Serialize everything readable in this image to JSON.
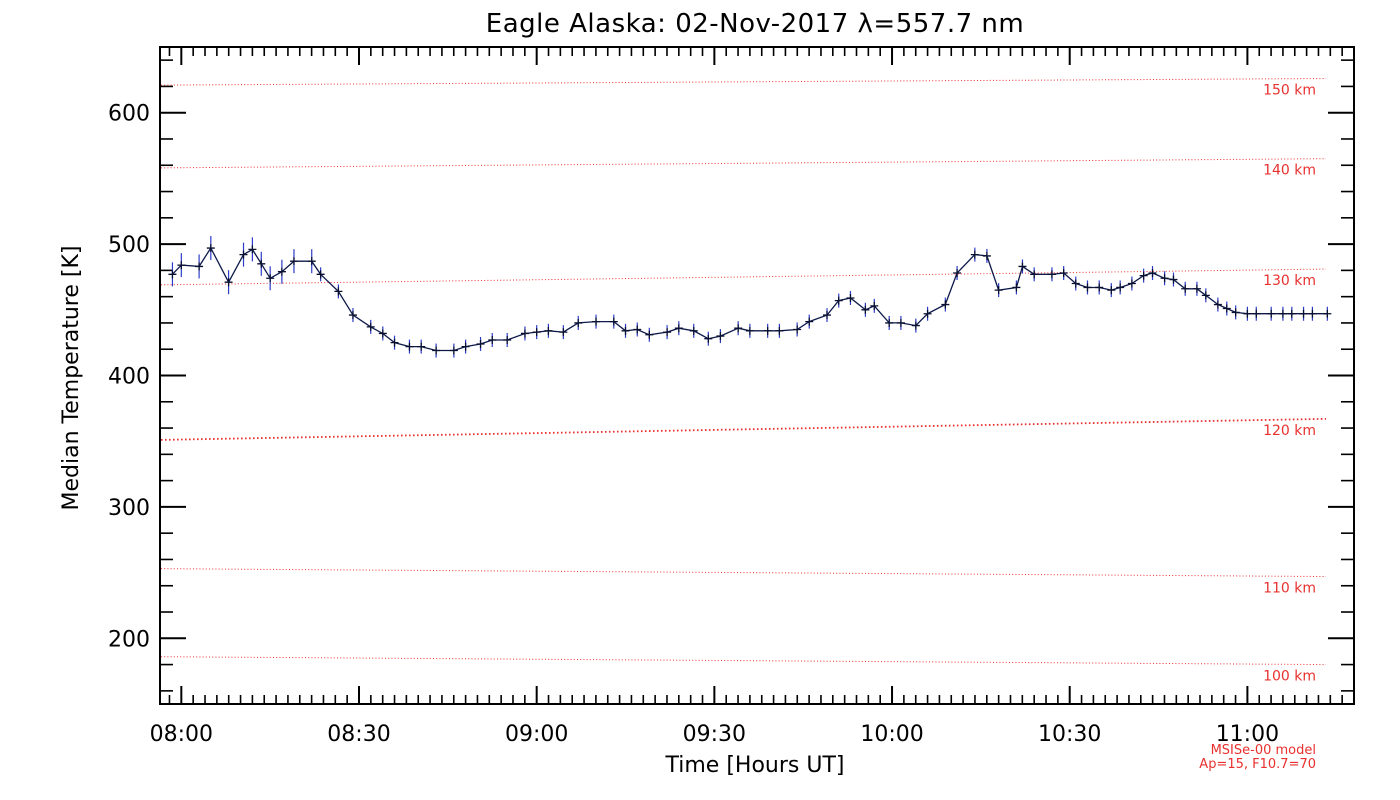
{
  "chart_data": {
    "type": "line",
    "title": "Eagle Alaska: 02-Nov-2017 λ=557.7 nm",
    "xlabel": "Time [Hours UT]",
    "ylabel": "Median Temperature [K]",
    "xlim": [
      7.94,
      11.3
    ],
    "ylim": [
      150,
      650
    ],
    "x_ticks": [
      {
        "value": 8.0,
        "label": "08:00"
      },
      {
        "value": 8.5,
        "label": "08:30"
      },
      {
        "value": 9.0,
        "label": "09:00"
      },
      {
        "value": 9.5,
        "label": "09:30"
      },
      {
        "value": 10.0,
        "label": "10:00"
      },
      {
        "value": 10.5,
        "label": "10:30"
      },
      {
        "value": 11.0,
        "label": "11:00"
      }
    ],
    "y_ticks": [
      {
        "value": 200,
        "label": "200"
      },
      {
        "value": 300,
        "label": "300"
      },
      {
        "value": 400,
        "label": "400"
      },
      {
        "value": 500,
        "label": "500"
      },
      {
        "value": 600,
        "label": "600"
      }
    ],
    "grid": false,
    "series": [
      {
        "color": "#1a2a78",
        "x": [
          7.975,
          8.0,
          8.05,
          8.083,
          8.133,
          8.175,
          8.2,
          8.225,
          8.25,
          8.283,
          8.317,
          8.367,
          8.392,
          8.442,
          8.483,
          8.533,
          8.567,
          8.6,
          8.642,
          8.675,
          8.717,
          8.767,
          8.8,
          8.842,
          8.875,
          8.917,
          8.967,
          9.0,
          9.033,
          9.075,
          9.117,
          9.167,
          9.217,
          9.25,
          9.283,
          9.317,
          9.367,
          9.4,
          9.442,
          9.483,
          9.517,
          9.567,
          9.6,
          9.65,
          9.683,
          9.733,
          9.767,
          9.817,
          9.85,
          9.883,
          9.925,
          9.95,
          9.992,
          10.025,
          10.067,
          10.1,
          10.15,
          10.183,
          10.233,
          10.267,
          10.3,
          10.35,
          10.367,
          10.4,
          10.45,
          10.483,
          10.517,
          10.55,
          10.583,
          10.617,
          10.642,
          10.675,
          10.708,
          10.733,
          10.767,
          10.792,
          10.825,
          10.858,
          10.883,
          10.917,
          10.942,
          10.967,
          11.0,
          11.025,
          11.067,
          11.1,
          11.125,
          11.158,
          11.183,
          11.225
        ],
        "y": [
          477,
          484,
          483,
          497,
          471,
          492,
          496,
          485,
          474,
          479,
          487,
          487,
          477,
          464,
          446,
          437,
          432,
          425,
          422,
          422,
          419,
          419,
          422,
          424,
          427,
          427,
          432,
          433,
          434,
          433,
          440,
          441,
          441,
          434,
          435,
          431,
          433,
          436,
          434,
          428,
          430,
          436,
          434,
          434,
          434,
          435,
          441,
          446,
          457,
          459,
          450,
          453,
          440,
          440,
          438,
          447,
          454,
          478,
          492,
          491,
          465,
          467,
          483,
          477,
          477,
          478,
          470,
          467,
          467,
          465,
          467,
          470,
          476,
          478,
          474,
          473,
          466,
          466,
          461,
          454,
          451,
          448,
          447,
          447,
          447,
          447,
          447,
          447,
          447,
          447
        ]
      }
    ],
    "reference_lines": [
      {
        "label": "150 km",
        "y_start": 621,
        "y_end": 626
      },
      {
        "label": "140 km",
        "y_start": 558,
        "y_end": 565
      },
      {
        "label": "130 km",
        "y_start": 469,
        "y_end": 481
      },
      {
        "label": "120 km",
        "y_start": 351,
        "y_end": 367
      },
      {
        "label": "110 km",
        "y_start": 253,
        "y_end": 247
      },
      {
        "label": "100 km",
        "y_start": 186,
        "y_end": 180
      }
    ],
    "annotations": [
      "MSISe-00 model",
      "Ap=15, F10.7=70"
    ],
    "colors": {
      "series": "#1a2a78",
      "reference": "#e8312f",
      "axes": "#000000"
    }
  }
}
